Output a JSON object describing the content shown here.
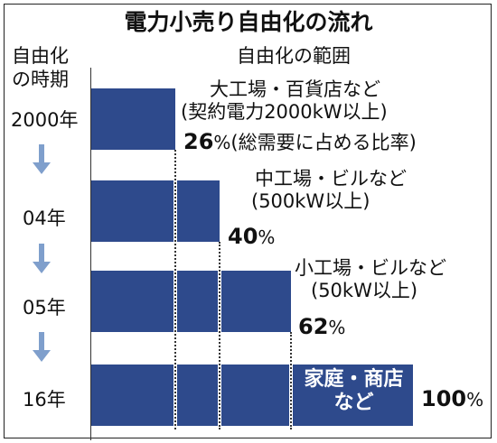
{
  "title": "電力小売り自由化の流れ",
  "headers": {
    "period_line1": "自由化",
    "period_line2": "の時期",
    "scope": "自由化の範囲"
  },
  "stages": [
    {
      "year": "2000年",
      "desc_line1": "大工場・百貨店など",
      "desc_line2": "(契約電力2000kW以上)",
      "pct_value": "26",
      "pct_unit": "%",
      "pct_suffix": "(総需要に占める比率)",
      "share": 26
    },
    {
      "year": "04年",
      "desc_line1": "中工場・ビルなど",
      "desc_line2": "(500kW以上)",
      "pct_value": "40",
      "pct_unit": "%",
      "share": 40
    },
    {
      "year": "05年",
      "desc_line1": "小工場・ビルなど",
      "desc_line2": "(50kW以上)",
      "pct_value": "62",
      "pct_unit": "%",
      "share": 62
    },
    {
      "year": "16年",
      "desc_line1": "家庭・商店",
      "desc_line2": "など",
      "pct_value": "100",
      "pct_unit": "%",
      "share": 100
    }
  ],
  "colors": {
    "bar": "#2e4a8c",
    "arrow": "#7f9fcc",
    "text": "#111111"
  },
  "icons": [
    "down-arrow-icon",
    "down-arrow-icon",
    "down-arrow-icon"
  ]
}
